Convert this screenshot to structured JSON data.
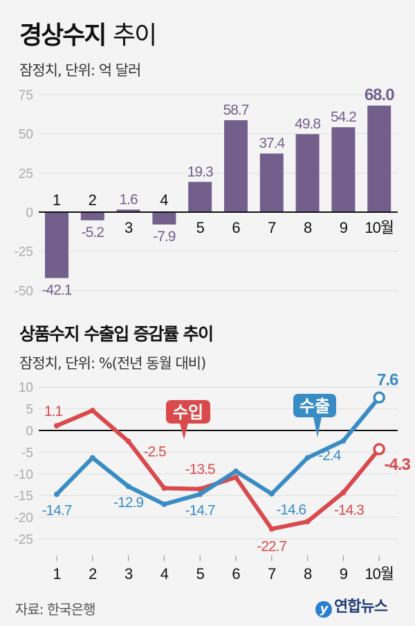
{
  "header": {
    "title_bold": "경상수지",
    "title_light": "추이",
    "subtitle": "잠정치, 단위: 억 달러"
  },
  "section2": {
    "title": "상품수지 수출입 증감률 추이",
    "subtitle": "잠정치, 단위: %(전년 동월 대비)"
  },
  "footer": {
    "source": "자료: 한국은행",
    "logo_text": "연합뉴스",
    "logo_mark": "y"
  },
  "colors": {
    "bar": "#735f8c",
    "imports": "#d84a4c",
    "exports": "#3a8cc4",
    "grid": "#dddddd",
    "axis_label": "#aaaaaa"
  },
  "chart_data": [
    {
      "type": "bar",
      "title": "경상수지 추이",
      "ylabel": "억 달러",
      "categories": [
        "1",
        "2",
        "3",
        "4",
        "5",
        "6",
        "7",
        "8",
        "9",
        "10월"
      ],
      "values": [
        -42.1,
        -5.2,
        1.6,
        -7.9,
        19.3,
        58.7,
        37.4,
        49.8,
        54.2,
        68.0
      ],
      "value_labels": [
        "-42.1",
        "-5.2",
        "1.6",
        "-7.9",
        "19.3",
        "58.7",
        "37.4",
        "49.8",
        "54.2",
        "68.0"
      ],
      "yticks": [
        75,
        50,
        25,
        0,
        -25,
        -50
      ],
      "ytick_labels": [
        "75",
        "50",
        "25",
        "0",
        "-25",
        "-50"
      ],
      "ylim": [
        -50,
        75
      ],
      "grid": true
    },
    {
      "type": "line",
      "title": "상품수지 수출입 증감률 추이",
      "ylabel": "%",
      "categories": [
        "1",
        "2",
        "3",
        "4",
        "5",
        "6",
        "7",
        "8",
        "9",
        "10월"
      ],
      "yticks": [
        10,
        5,
        0,
        -5,
        -10,
        -15,
        -20,
        -25
      ],
      "ytick_labels": [
        "10",
        "5",
        "0",
        "-5",
        "-10",
        "-15",
        "-20",
        "-25"
      ],
      "ylim": [
        -25,
        10
      ],
      "grid": true,
      "series": [
        {
          "name": "수입",
          "key": "imports",
          "values": [
            1.1,
            4.6,
            -2.5,
            -13.3,
            -13.5,
            -10.8,
            -22.7,
            -21.0,
            -14.3,
            -4.3
          ],
          "labels": [
            "1.1",
            null,
            "-2.5",
            null,
            "-13.5",
            null,
            "-22.7",
            null,
            "-14.3",
            "-4.3"
          ]
        },
        {
          "name": "수출",
          "key": "exports",
          "values": [
            -14.7,
            -6.3,
            -12.9,
            -17.0,
            -14.7,
            -9.4,
            -14.6,
            -6.3,
            -2.4,
            7.6
          ],
          "labels": [
            "-14.7",
            null,
            "-12.9",
            null,
            "-14.7",
            null,
            "-14.6",
            null,
            "-2.4",
            "7.6"
          ]
        }
      ]
    }
  ]
}
